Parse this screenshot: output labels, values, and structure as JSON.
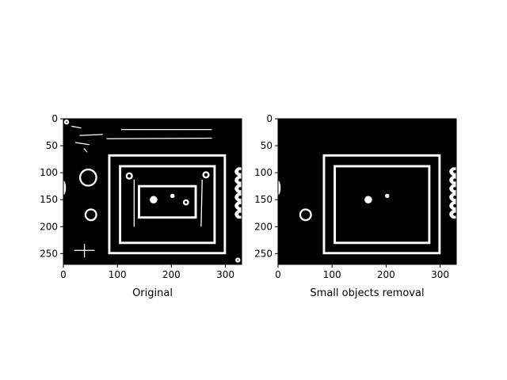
{
  "chart_data": [
    {
      "type": "image",
      "xlabel": "Original",
      "xlim": [
        0,
        330
      ],
      "ylim": [
        270,
        0
      ],
      "xticks": [
        0,
        100,
        200,
        300
      ],
      "yticks": [
        0,
        50,
        100,
        150,
        200,
        250
      ],
      "background": "#000000",
      "foreground": "#ffffff",
      "objects": [
        {
          "kind": "rect-outline",
          "x0": 85,
          "y0": 68,
          "x1": 299,
          "y1": 249
        },
        {
          "kind": "rect-outline",
          "x0": 105,
          "y0": 88,
          "x1": 280,
          "y1": 230
        },
        {
          "kind": "rect-outline",
          "x0": 140,
          "y0": 125,
          "x1": 245,
          "y1": 183
        },
        {
          "kind": "disk",
          "cx": 167,
          "cy": 150,
          "r": 7
        },
        {
          "kind": "disk",
          "cx": 202,
          "cy": 143,
          "r": 4
        },
        {
          "kind": "circle",
          "cx": 227,
          "cy": 155,
          "r": 4
        },
        {
          "kind": "circle",
          "cx": 122,
          "cy": 106,
          "r": 5
        },
        {
          "kind": "circle",
          "cx": 264,
          "cy": 104,
          "r": 5
        },
        {
          "kind": "circle",
          "cx": 46,
          "cy": 109,
          "r": 15
        },
        {
          "kind": "circle",
          "cx": 51,
          "cy": 178,
          "r": 10
        },
        {
          "kind": "circle",
          "cx": 6,
          "cy": 6,
          "r": 3
        },
        {
          "kind": "circle",
          "cx": 323,
          "cy": 262,
          "r": 3
        },
        {
          "kind": "line",
          "x0": 107,
          "y0": 20,
          "x1": 275,
          "y1": 20
        },
        {
          "kind": "line",
          "x0": 80,
          "y0": 37,
          "x1": 275,
          "y1": 36
        },
        {
          "kind": "line",
          "x0": 30,
          "y0": 31,
          "x1": 73,
          "y1": 29
        },
        {
          "kind": "line",
          "x0": 15,
          "y0": 14,
          "x1": 33,
          "y1": 17
        },
        {
          "kind": "line",
          "x0": 22,
          "y0": 44,
          "x1": 48,
          "y1": 48
        },
        {
          "kind": "line",
          "x0": 38,
          "y0": 55,
          "x1": 44,
          "y1": 62
        },
        {
          "kind": "line",
          "x0": 131,
          "y0": 113,
          "x1": 131,
          "y1": 200
        },
        {
          "kind": "line",
          "x0": 257,
          "y0": 113,
          "x1": 255,
          "y1": 200
        },
        {
          "kind": "line",
          "x0": 20,
          "y0": 244,
          "x1": 58,
          "y1": 244
        },
        {
          "kind": "line",
          "x0": 39,
          "y0": 232,
          "x1": 39,
          "y1": 257
        },
        {
          "kind": "blob",
          "cx": 0,
          "cy": 128,
          "r": 6
        },
        {
          "kind": "wavy-edge",
          "x": 320,
          "y0": 90,
          "y1": 185
        }
      ]
    },
    {
      "type": "image",
      "xlabel": "Small objects removal",
      "xlim": [
        0,
        330
      ],
      "ylim": [
        270,
        0
      ],
      "xticks": [
        0,
        100,
        200,
        300
      ],
      "yticks": [
        0,
        50,
        100,
        150,
        200,
        250
      ],
      "background": "#000000",
      "foreground": "#ffffff",
      "objects": [
        {
          "kind": "rect-outline",
          "x0": 85,
          "y0": 68,
          "x1": 299,
          "y1": 249
        },
        {
          "kind": "rect-outline",
          "x0": 105,
          "y0": 88,
          "x1": 280,
          "y1": 230
        },
        {
          "kind": "disk",
          "cx": 167,
          "cy": 150,
          "r": 7
        },
        {
          "kind": "disk",
          "cx": 202,
          "cy": 143,
          "r": 4
        },
        {
          "kind": "circle",
          "cx": 51,
          "cy": 178,
          "r": 10
        },
        {
          "kind": "blob",
          "cx": 0,
          "cy": 128,
          "r": 6
        },
        {
          "kind": "wavy-edge",
          "x": 320,
          "y0": 90,
          "y1": 185
        }
      ]
    }
  ]
}
